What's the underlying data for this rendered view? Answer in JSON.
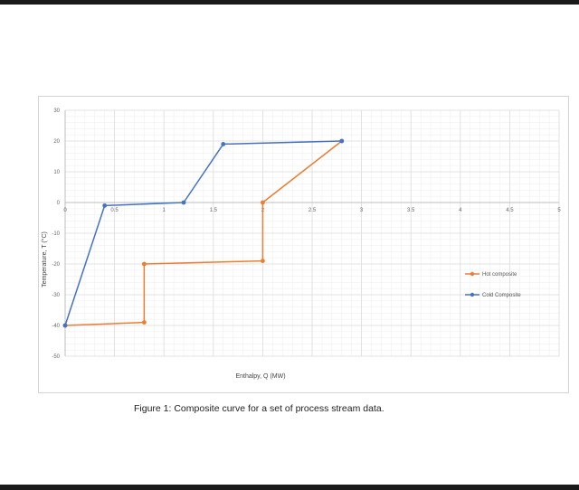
{
  "figure": {
    "caption": "Figure 1: Composite curve for a set of process stream data."
  },
  "chart_data": {
    "type": "scatter",
    "title": "",
    "xlabel": "Enthalpy, Q (MW)",
    "ylabel": "Temperature, T (°C)",
    "xlim": [
      0,
      5
    ],
    "ylim": [
      -50,
      30
    ],
    "x_ticks": [
      0,
      0.5,
      1,
      1.5,
      2,
      2.5,
      3,
      3.5,
      4,
      4.5,
      5
    ],
    "x_tick_labels": [
      "0",
      "0.5",
      "1",
      "1.5",
      "2",
      "2.5",
      "3",
      "3.5",
      "4",
      "4.5",
      "5"
    ],
    "y_ticks": [
      -50,
      -40,
      -30,
      -20,
      -10,
      0,
      10,
      20,
      30
    ],
    "y_tick_labels": [
      "-50",
      "-40",
      "-30",
      "-20",
      "-10",
      "0",
      "10",
      "20",
      "30"
    ],
    "grid": true,
    "legend_position": "right",
    "series": [
      {
        "name": "Hot composite",
        "color": "#ED7D31",
        "points": [
          [
            0,
            -40
          ],
          [
            0.8,
            -39
          ],
          [
            0.8,
            -20
          ],
          [
            2,
            -19
          ],
          [
            2,
            0
          ],
          [
            2.8,
            20
          ]
        ]
      },
      {
        "name": "Cold Composite",
        "color": "#4472C4",
        "points": [
          [
            0,
            -40
          ],
          [
            0.4,
            -1
          ],
          [
            1.2,
            0
          ],
          [
            1.6,
            19
          ],
          [
            2.8,
            20
          ]
        ]
      }
    ]
  }
}
